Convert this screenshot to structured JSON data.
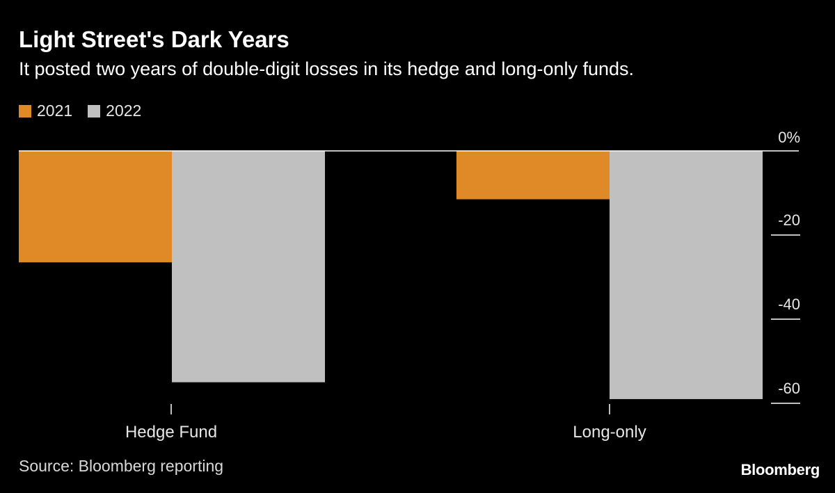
{
  "title": "Light Street's Dark Years",
  "subtitle": "It posted two years of double-digit losses in its hedge and long-only funds.",
  "source": "Source: Bloomberg reporting",
  "brand": "Bloomberg",
  "colors": {
    "background": "#000000",
    "series_2021": "#e08a27",
    "series_2022": "#c0c0c0",
    "axis": "#ffffff",
    "text": "#ffffff"
  },
  "chart_data": {
    "type": "bar",
    "categories": [
      "Hedge Fund",
      "Long-only"
    ],
    "series": [
      {
        "name": "2021",
        "values": [
          -26.5,
          -11.5
        ]
      },
      {
        "name": "2022",
        "values": [
          -55,
          -59
        ]
      }
    ],
    "y_ticks": [
      0,
      -20,
      -40,
      -60
    ],
    "y_tick_labels": [
      "0%",
      "-20",
      "-40",
      "-60"
    ],
    "ylim": [
      -60,
      0
    ],
    "legend_position": "top-left",
    "grid": false
  }
}
